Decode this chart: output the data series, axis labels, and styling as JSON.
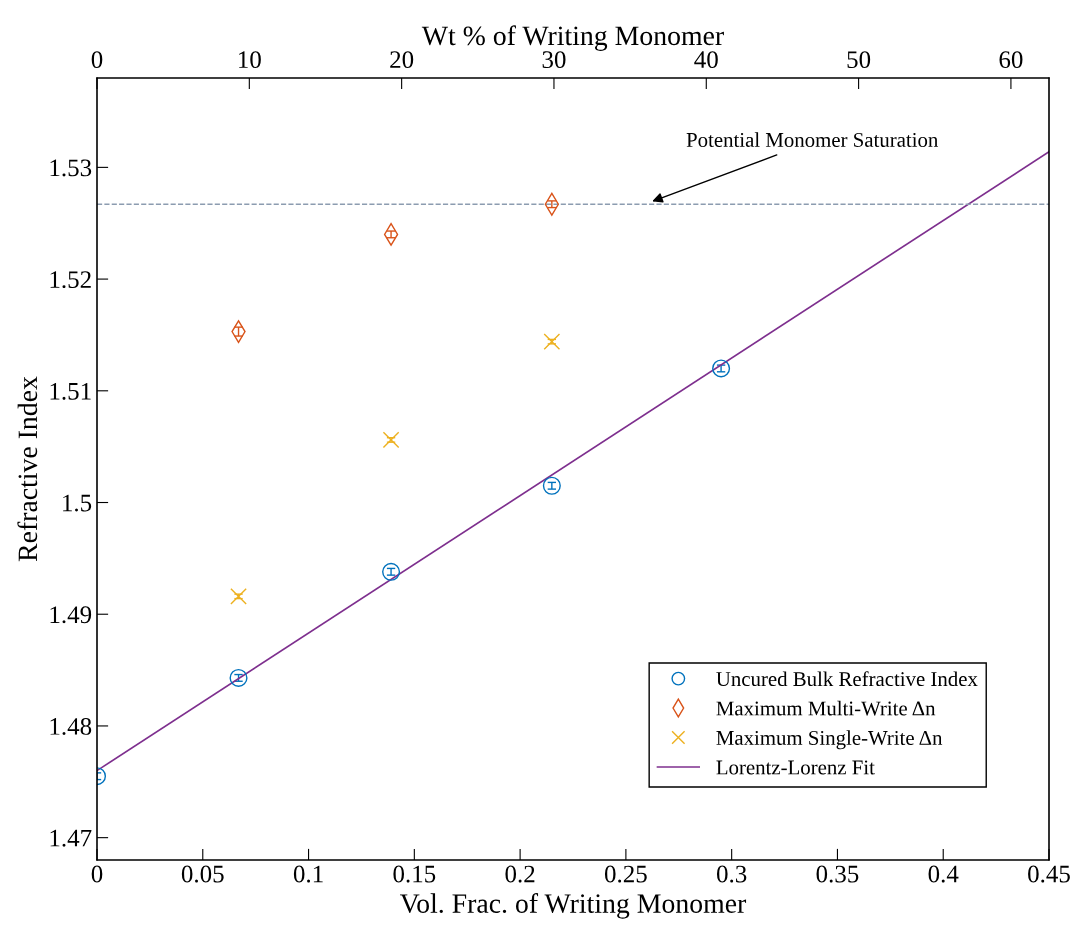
{
  "chart_data": {
    "type": "scatter",
    "xlabel": "Vol. Frac. of Writing Monomer",
    "ylabel": "Refractive Index",
    "x2label": "Wt % of Writing Monomer",
    "xlim": [
      0,
      0.45
    ],
    "xticks": [
      0,
      0.05,
      0.1,
      0.15,
      0.2,
      0.25,
      0.3,
      0.35,
      0.4,
      0.45
    ],
    "x2lim": [
      0,
      62.5
    ],
    "x2ticks": [
      0,
      10,
      20,
      30,
      40,
      50,
      60
    ],
    "ylim": [
      1.468,
      1.538
    ],
    "yticks": [
      1.47,
      1.48,
      1.49,
      {
        "value": 1.5,
        "label": "1.5"
      },
      1.51,
      1.52,
      1.53
    ],
    "grid": false,
    "legend": "bottom right",
    "series": [
      {
        "name": "Uncured Bulk Refractive Index",
        "color": "#0072bd",
        "marker": "circle",
        "x": [
          0,
          0.0669,
          0.139,
          0.215,
          0.295
        ],
        "values": [
          1.4755,
          1.4843,
          1.4938,
          1.5015,
          1.512
        ],
        "errors": [
          0.0003,
          0.0003,
          0.0003,
          0.0003,
          0.0003
        ]
      },
      {
        "name": "Maximum Multi-Write Δn",
        "color": "#d95319",
        "marker": "diamond",
        "x": [
          0.0669,
          0.139,
          0.215
        ],
        "values": [
          1.5153,
          1.524,
          1.5267
        ],
        "errors": [
          0.0004,
          0.0003,
          0.0003
        ]
      },
      {
        "name": "Maximum Single-Write Δn",
        "color": "#edb120",
        "marker": "cross",
        "x": [
          0.0669,
          0.139,
          0.215
        ],
        "values": [
          1.4916,
          1.5056,
          1.5144
        ],
        "errors": [
          0.0002,
          0.0002,
          0.0002
        ]
      },
      {
        "name": "Lorentz-Lorenz Fit",
        "type": "line",
        "color": "#7e2f8e",
        "marker": "none",
        "line_style": "solid",
        "x": [
          0,
          0.45
        ],
        "values": [
          1.476,
          1.5314
        ]
      }
    ],
    "ref_lines": [
      {
        "axis": "y",
        "value": 1.5267,
        "color": "#8c9cb0",
        "line_style": "dashed",
        "label": "Potential Monomer Saturation"
      }
    ]
  }
}
